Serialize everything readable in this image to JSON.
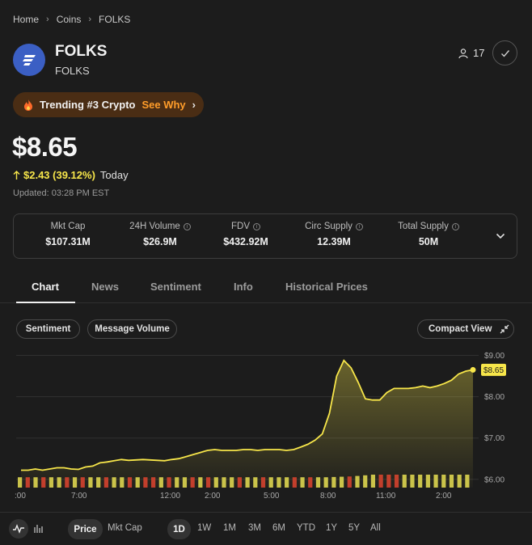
{
  "breadcrumb": {
    "home": "Home",
    "coins": "Coins",
    "current": "FOLKS"
  },
  "coin": {
    "name": "FOLKS",
    "symbol": "FOLKS",
    "logo_color": "#3b5fc4"
  },
  "watchers": {
    "count": "17"
  },
  "trending": {
    "label": "Trending #3 Crypto",
    "link": "See Why"
  },
  "price": {
    "value": "$8.65",
    "change": "$2.43 (39.12%)",
    "period": "Today",
    "updated": "Updated: 03:28 PM EST",
    "change_color": "#f7e64a"
  },
  "stats": [
    {
      "label": "Mkt Cap",
      "value": "$107.31M",
      "info": false
    },
    {
      "label": "24H Volume",
      "value": "$26.9M",
      "info": true
    },
    {
      "label": "FDV",
      "value": "$432.92M",
      "info": true
    },
    {
      "label": "Circ Supply",
      "value": "12.39M",
      "info": true
    },
    {
      "label": "Total Supply",
      "value": "50M",
      "info": true
    }
  ],
  "tabs": [
    "Chart",
    "News",
    "Sentiment",
    "Info",
    "Historical Prices"
  ],
  "chart_controls": {
    "sentiment": "Sentiment",
    "message_volume": "Message Volume",
    "compact_view": "Compact View"
  },
  "chart_data": {
    "type": "line",
    "series_color": "#f7e64a",
    "x_ticks": [
      ":00",
      "7:00",
      "12:00",
      "2:00",
      "5:00",
      "8:00",
      "11:00",
      "2:00"
    ],
    "y_ticks": [
      "$9.00",
      "$8.00",
      "$7.00",
      "$6.00"
    ],
    "ylim": [
      5.8,
      9.05
    ],
    "last_price_label": "$8.65",
    "price": [
      6.22,
      6.22,
      6.25,
      6.22,
      6.25,
      6.28,
      6.28,
      6.25,
      6.24,
      6.3,
      6.32,
      6.4,
      6.42,
      6.45,
      6.48,
      6.46,
      6.47,
      6.48,
      6.47,
      6.46,
      6.45,
      6.48,
      6.5,
      6.55,
      6.6,
      6.65,
      6.7,
      6.72,
      6.7,
      6.7,
      6.7,
      6.72,
      6.72,
      6.7,
      6.72,
      6.72,
      6.72,
      6.7,
      6.72,
      6.78,
      6.85,
      6.95,
      7.1,
      7.6,
      8.5,
      8.88,
      8.7,
      8.35,
      7.95,
      7.92,
      7.92,
      8.1,
      8.2,
      8.2,
      8.2,
      8.22,
      8.26,
      8.22,
      8.26,
      8.32,
      8.4,
      8.55,
      8.62,
      8.65
    ],
    "volume": [
      0.8,
      0.8,
      0.8,
      0.8,
      0.8,
      0.8,
      0.8,
      0.8,
      0.8,
      0.8,
      0.8,
      0.8,
      0.8,
      0.8,
      0.8,
      0.8,
      0.8,
      0.8,
      0.8,
      0.8,
      0.8,
      0.8,
      0.8,
      0.8,
      0.8,
      0.8,
      0.8,
      0.8,
      0.8,
      0.8,
      0.8,
      0.8,
      0.8,
      0.8,
      0.8,
      0.8,
      0.8,
      0.8,
      0.8,
      0.8,
      0.82,
      0.84,
      0.86,
      0.9,
      0.95,
      1.0,
      1.0,
      1.0,
      1.0,
      1.0,
      1.0,
      1.0,
      1.0,
      1.0,
      1.0,
      1.0,
      1.0,
      1.0
    ],
    "volume_direction": [
      "u",
      "d",
      "u",
      "d",
      "u",
      "u",
      "d",
      "u",
      "d",
      "u",
      "u",
      "d",
      "u",
      "u",
      "d",
      "u",
      "d",
      "d",
      "u",
      "d",
      "u",
      "u",
      "d",
      "u",
      "d",
      "u",
      "u",
      "u",
      "d",
      "u",
      "u",
      "d",
      "u",
      "u",
      "u",
      "d",
      "u",
      "d",
      "u",
      "u",
      "u",
      "u",
      "d",
      "u",
      "u",
      "u",
      "d",
      "d",
      "d",
      "u",
      "u",
      "u",
      "u",
      "u",
      "u",
      "u",
      "u",
      "u"
    ],
    "up_color": "#c9c24a",
    "down_color": "#c0392b"
  },
  "bottom_bar": {
    "price": "Price",
    "mkt_cap": "Mkt Cap",
    "ranges": [
      "1D",
      "1W",
      "1M",
      "3M",
      "6M",
      "YTD",
      "1Y",
      "5Y",
      "All"
    ],
    "active_range": "1D"
  }
}
